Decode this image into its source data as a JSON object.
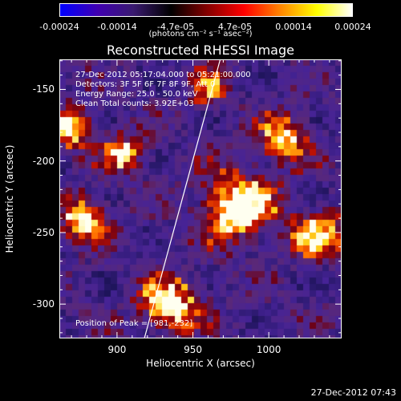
{
  "colorbar": {
    "ticks": [
      "-0.00024",
      "-0.00014",
      "-4.7e-05",
      "4.7e-05",
      "0.00014",
      "0.00024"
    ],
    "units": "(photons cm⁻² s⁻¹ asec⁻²)",
    "colors": [
      "#0000ff",
      "#4000b0",
      "#3a1a70",
      "#000000",
      "#800000",
      "#ff0000",
      "#ff8000",
      "#ffff00",
      "#ffffff"
    ]
  },
  "annotations": {
    "time_range": "27-Dec-2012 05:17:04.000 to 05:21:00.000",
    "detectors": "Detectors: 3F 5F 6F 7F 8F 9F, Att 0",
    "energy_range": "Energy Range: 25.0 - 50.0 keV",
    "clean_counts": "Clean     Total counts: 3.92E+03",
    "peak_position": "Position of Peak = [981,-232]"
  },
  "footer": {
    "date": "27-Dec-2012 07:43"
  },
  "chart_data": {
    "type": "heatmap",
    "title": "Reconstructed RHESSI Image",
    "xlabel": "Heliocentric X (arcsec)",
    "ylabel": "Heliocentric Y (arcsec)",
    "xlim": [
      862,
      1048
    ],
    "ylim": [
      -324,
      -129
    ],
    "xticks": [
      900,
      950,
      1000
    ],
    "yticks": [
      -150,
      -200,
      -250,
      -300
    ],
    "limb_line": {
      "x": [
        918,
        968
      ],
      "y": [
        -324,
        -129
      ]
    },
    "peak": {
      "x": 981,
      "y": -232
    },
    "bright_sources": [
      {
        "x": 980,
        "y": -232,
        "r": 22,
        "intensity": 1.0
      },
      {
        "x": 878,
        "y": -240,
        "r": 14,
        "intensity": 0.85
      },
      {
        "x": 870,
        "y": -178,
        "r": 14,
        "intensity": 0.75
      },
      {
        "x": 935,
        "y": -300,
        "r": 18,
        "intensity": 0.85
      },
      {
        "x": 1010,
        "y": -185,
        "r": 16,
        "intensity": 0.7
      },
      {
        "x": 1032,
        "y": -250,
        "r": 16,
        "intensity": 0.75
      },
      {
        "x": 905,
        "y": -195,
        "r": 14,
        "intensity": 0.65
      },
      {
        "x": 960,
        "y": -150,
        "r": 12,
        "intensity": 0.55
      }
    ],
    "grid": false
  }
}
